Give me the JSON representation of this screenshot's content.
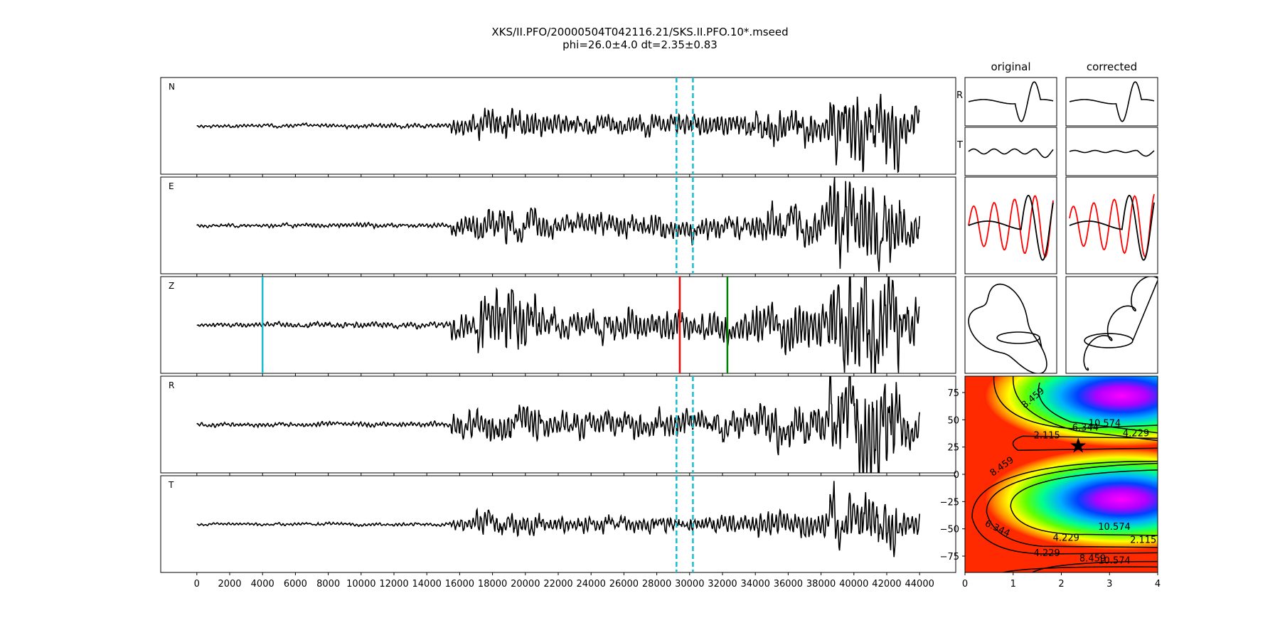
{
  "figure": {
    "title_line1": "XKS/II.PFO/20000504T042116.21/SKS.II.PFO.10*.mseed",
    "title_line2": "phi=26.0±4.0 dt=2.35±0.83",
    "col_original": "original",
    "col_corrected": "corrected"
  },
  "chart_data": [
    {
      "type": "line",
      "panel": "seismograms",
      "x_range": [
        -2200,
        46200
      ],
      "x_ticks": [
        0,
        2000,
        4000,
        6000,
        8000,
        10000,
        12000,
        14000,
        16000,
        18000,
        20000,
        22000,
        24000,
        26000,
        28000,
        30000,
        32000,
        34000,
        36000,
        38000,
        40000,
        42000,
        44000
      ],
      "x_tick_labels": [
        "0",
        "2000",
        "4000",
        "6000",
        "8000",
        "10000",
        "12000",
        "14000",
        "16000",
        "18000",
        "20000",
        "22000",
        "24000",
        "26000",
        "28000",
        "30000",
        "32000",
        "34000",
        "36000",
        "38000",
        "40000",
        "42000",
        "44000"
      ],
      "signal_range": [
        0,
        44000
      ],
      "traces": [
        {
          "label": "N",
          "seed": 11,
          "amp": 0.55,
          "window_lines": true
        },
        {
          "label": "E",
          "seed": 23,
          "amp": 0.62,
          "window_lines": true
        },
        {
          "label": "Z",
          "seed": 37,
          "amp": 0.78,
          "window_lines": false
        },
        {
          "label": "R",
          "seed": 51,
          "amp": 0.7,
          "window_lines": true
        },
        {
          "label": "T",
          "seed": 67,
          "amp": 0.42,
          "window_lines": true
        }
      ],
      "window": {
        "start": 29200,
        "end": 30200,
        "color": "#17becf",
        "style": "dashed"
      },
      "phase_picks": [
        {
          "x": 4000,
          "color": "#17becf"
        },
        {
          "x": 29400,
          "color": "#ff0000"
        },
        {
          "x": 32300,
          "color": "#008000"
        }
      ]
    },
    {
      "type": "line",
      "panel": "particle-motion",
      "columns": [
        "original",
        "corrected"
      ],
      "rows": [
        {
          "label": "R",
          "kind": "R"
        },
        {
          "label": "T",
          "kind": "T"
        },
        {
          "label": "",
          "kind": "overlay",
          "series_colors": [
            "#000000",
            "#ff0000"
          ]
        },
        {
          "label": "",
          "kind": "particle"
        }
      ]
    },
    {
      "type": "heatmap",
      "panel": "energy-grid",
      "x_range": [
        0,
        4
      ],
      "y_range": [
        -90,
        90
      ],
      "x_ticks": [
        0,
        1,
        2,
        3,
        4
      ],
      "y_ticks": [
        75,
        50,
        25,
        0,
        -25,
        -50,
        -75
      ],
      "colormap": "gist_rainbow",
      "contour_levels": [
        "2.115",
        "4.229",
        "6.344",
        "8.459",
        "10.574"
      ],
      "best_fit": {
        "dt": 2.35,
        "phi": 26.0,
        "marker": "star"
      }
    }
  ]
}
